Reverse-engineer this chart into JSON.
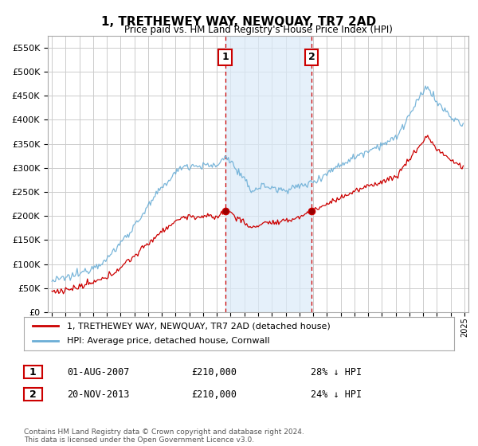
{
  "title": "1, TRETHEWEY WAY, NEWQUAY, TR7 2AD",
  "subtitle": "Price paid vs. HM Land Registry's House Price Index (HPI)",
  "ylim": [
    0,
    575000
  ],
  "yticks": [
    0,
    50000,
    100000,
    150000,
    200000,
    250000,
    300000,
    350000,
    400000,
    450000,
    500000,
    550000
  ],
  "ytick_labels": [
    "£0",
    "£50K",
    "£100K",
    "£150K",
    "£200K",
    "£250K",
    "£300K",
    "£350K",
    "£400K",
    "£450K",
    "£500K",
    "£550K"
  ],
  "xlim_start": 1994.7,
  "xlim_end": 2025.3,
  "sale1_year": 2007.6,
  "sale1_price": 210000,
  "sale1_label": "1",
  "sale1_date": "01-AUG-2007",
  "sale1_hpi_pct": "28% ↓ HPI",
  "sale2_year": 2013.9,
  "sale2_price": 210000,
  "sale2_label": "2",
  "sale2_date": "20-NOV-2013",
  "sale2_hpi_pct": "24% ↓ HPI",
  "shade_color": "#daeaf8",
  "shade_alpha": 0.7,
  "red_line_color": "#cc0000",
  "blue_line_color": "#6baed6",
  "dashed_line_color": "#cc0000",
  "grid_color": "#cccccc",
  "footer_text": "Contains HM Land Registry data © Crown copyright and database right 2024.\nThis data is licensed under the Open Government Licence v3.0.",
  "legend_label_red": "1, TRETHEWEY WAY, NEWQUAY, TR7 2AD (detached house)",
  "legend_label_blue": "HPI: Average price, detached house, Cornwall"
}
